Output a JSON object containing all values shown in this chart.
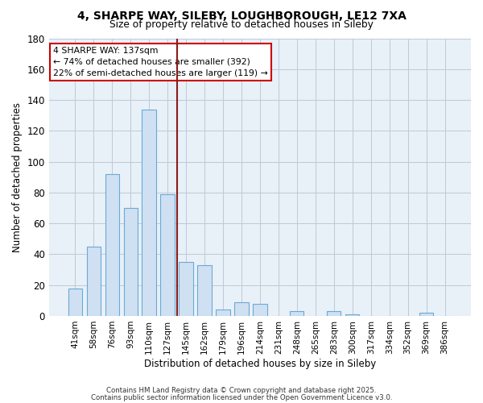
{
  "title_line1": "4, SHARPE WAY, SILEBY, LOUGHBOROUGH, LE12 7XA",
  "title_line2": "Size of property relative to detached houses in Sileby",
  "xlabel": "Distribution of detached houses by size in Sileby",
  "ylabel": "Number of detached properties",
  "bar_labels": [
    "41sqm",
    "58sqm",
    "76sqm",
    "93sqm",
    "110sqm",
    "127sqm",
    "145sqm",
    "162sqm",
    "179sqm",
    "196sqm",
    "214sqm",
    "231sqm",
    "248sqm",
    "265sqm",
    "283sqm",
    "300sqm",
    "317sqm",
    "334sqm",
    "352sqm",
    "369sqm",
    "386sqm"
  ],
  "bar_values": [
    18,
    45,
    92,
    70,
    134,
    79,
    35,
    33,
    4,
    9,
    8,
    0,
    3,
    0,
    3,
    1,
    0,
    0,
    0,
    2,
    0
  ],
  "bar_color": "#cfe0f3",
  "bar_edge_color": "#6aaad4",
  "plot_bg_color": "#e8f0f8",
  "ylim": [
    0,
    180
  ],
  "yticks": [
    0,
    20,
    40,
    60,
    80,
    100,
    120,
    140,
    160,
    180
  ],
  "vline_x": 5.5,
  "vline_color": "#8b1a1a",
  "annotation_title": "4 SHARPE WAY: 137sqm",
  "annotation_line1": "← 74% of detached houses are smaller (392)",
  "annotation_line2": "22% of semi-detached houses are larger (119) →",
  "footer_line1": "Contains HM Land Registry data © Crown copyright and database right 2025.",
  "footer_line2": "Contains public sector information licensed under the Open Government Licence v3.0.",
  "background_color": "#ffffff",
  "grid_color": "#c0c8d8"
}
